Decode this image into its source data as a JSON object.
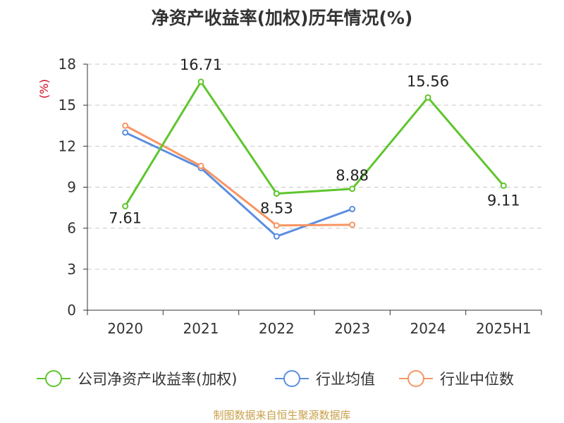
{
  "chart_data": {
    "type": "line",
    "title": "净资产收益率(加权)历年情况(%)",
    "ylabel": "(%)",
    "categories": [
      "2020",
      "2021",
      "2022",
      "2023",
      "2024",
      "2025H1"
    ],
    "ylim": [
      0,
      18
    ],
    "yticks": [
      0,
      3,
      6,
      9,
      12,
      15,
      18
    ],
    "grid": true,
    "legend_position": "bottom",
    "series": [
      {
        "name": "公司净资产收益率(加权)",
        "color": "#5fc52e",
        "values": [
          7.61,
          16.71,
          8.53,
          8.88,
          15.56,
          9.11
        ],
        "labels": [
          "7.61",
          "16.71",
          "8.53",
          "8.88",
          "15.56",
          "9.11"
        ]
      },
      {
        "name": "行业均值",
        "color": "#5b8ee0",
        "values": [
          13.0,
          10.4,
          5.4,
          7.4,
          null,
          null
        ]
      },
      {
        "name": "行业中位数",
        "color": "#f79563",
        "values": [
          13.5,
          10.55,
          6.2,
          6.25,
          null,
          null
        ]
      }
    ]
  },
  "source": {
    "text": "制图数据来自恒生聚源数据库",
    "color": "#c8a04a"
  }
}
